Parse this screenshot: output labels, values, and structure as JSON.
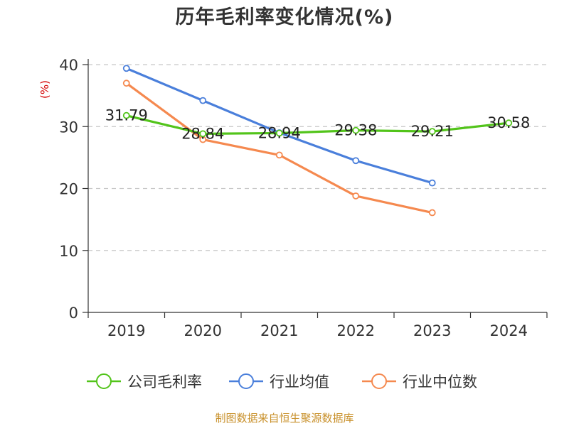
{
  "chart_data": {
    "type": "line",
    "title": "历年毛利率变化情况(%)",
    "ylabel": "(%)",
    "categories": [
      "2019",
      "2020",
      "2021",
      "2022",
      "2023",
      "2024"
    ],
    "ylim": [
      0,
      40
    ],
    "yticks": [
      0,
      10,
      20,
      30,
      40
    ],
    "grid": true,
    "legend": "bottom",
    "series": [
      {
        "name": "公司毛利率",
        "color": "#52c41a",
        "values": [
          31.79,
          28.84,
          28.94,
          29.38,
          29.21,
          30.58
        ],
        "labels": [
          "31.79",
          "28.84",
          "28.94",
          "29.38",
          "29.21",
          "30.58"
        ]
      },
      {
        "name": "行业均值",
        "color": "#4a7fdb",
        "values": [
          39.4,
          34.2,
          29.0,
          24.5,
          20.9,
          null
        ]
      },
      {
        "name": "行业中位数",
        "color": "#f5894f",
        "values": [
          37.0,
          27.9,
          25.4,
          18.8,
          16.1,
          null
        ]
      }
    ]
  },
  "source": "制图数据来自恒生聚源数据库"
}
